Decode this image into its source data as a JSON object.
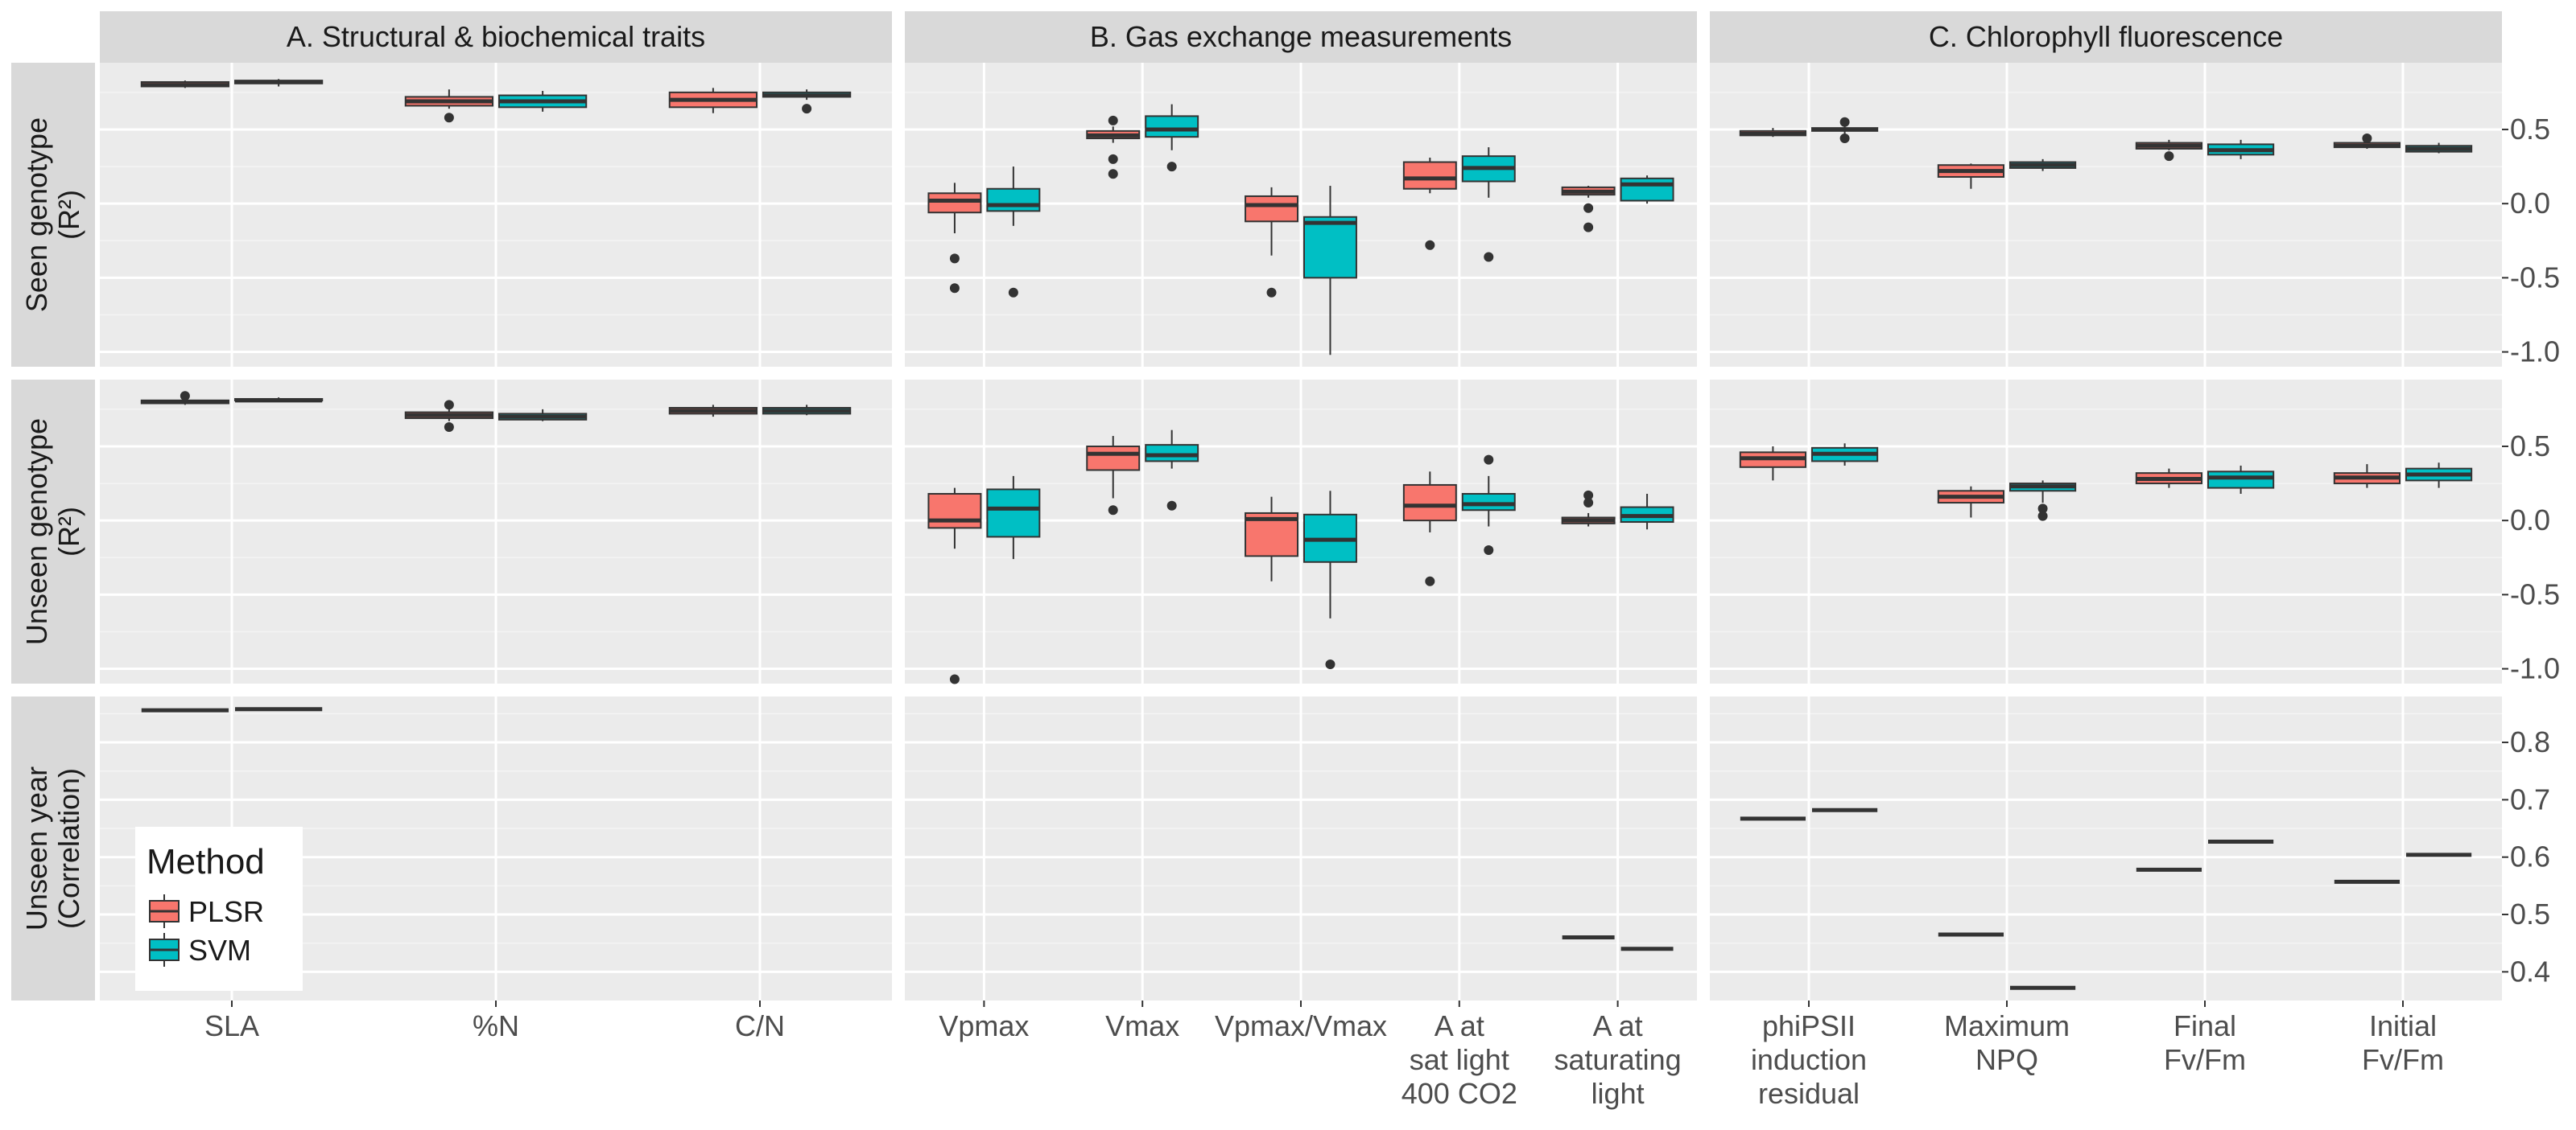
{
  "colors": {
    "panel_bg": "#ebebeb",
    "strip_bg": "#d9d9d9",
    "grid_major": "#ffffff",
    "grid_minor": "#f4f4f4",
    "plsr": "#f8766d",
    "svm": "#00bfc4",
    "outline": "#333333",
    "text": "#1a1a1a",
    "tick_text": "#4d4d4d"
  },
  "chart_data": {
    "type": "box",
    "columns": [
      {
        "id": "A",
        "title": "A. Structural & biochemical traits",
        "categories": [
          "SLA",
          "%N",
          "C/N"
        ]
      },
      {
        "id": "B",
        "title": "B. Gas exchange measurements",
        "categories": [
          "Vpmax",
          "Vmax",
          "Vpmax/Vmax",
          "A at\nsat light\n400 CO2",
          "A at\nsaturating\nlight"
        ]
      },
      {
        "id": "C",
        "title": "C. Chlorophyll fluorescence",
        "categories": [
          "phiPSII\ninduction\nresidual",
          "Maximum\nNPQ",
          "Final\nFv/Fm",
          "Initial\nFv/Fm"
        ]
      }
    ],
    "rows": [
      {
        "id": "seen",
        "label": "Seen genotype\n(R²)",
        "ylim": [
          -1.1,
          0.95
        ],
        "ticks": [
          0.5,
          0.0,
          -0.5,
          -1.0
        ],
        "tick_labels": [
          "0.5",
          "0.0",
          "-0.5",
          "-1.0"
        ]
      },
      {
        "id": "unseen_genotype",
        "label": "Unseen genotype\n(R²)",
        "ylim": [
          -1.1,
          0.95
        ],
        "ticks": [
          0.5,
          0.0,
          -0.5,
          -1.0
        ],
        "tick_labels": [
          "0.5",
          "0.0",
          "-0.5",
          "-1.0"
        ]
      },
      {
        "id": "unseen_year",
        "label": "Unseen year\n(Correlation)",
        "ylim": [
          0.35,
          0.88
        ],
        "ticks": [
          0.8,
          0.7,
          0.6,
          0.5,
          0.4
        ],
        "tick_labels": [
          "0.8",
          "0.7",
          "0.6",
          "0.5",
          "0.4"
        ]
      }
    ],
    "legend": {
      "title": "Method",
      "entries": [
        {
          "name": "PLSR",
          "color": "#f8766d"
        },
        {
          "name": "SVM",
          "color": "#00bfc4"
        }
      ],
      "position": "bottom-left"
    },
    "series": [
      {
        "name": "PLSR",
        "color": "#f8766d"
      },
      {
        "name": "SVM",
        "color": "#00bfc4"
      }
    ],
    "boxes": {
      "seen": {
        "A": [
          {
            "PLSR": {
              "min": 0.78,
              "q1": 0.79,
              "median": 0.8,
              "q3": 0.82,
              "max": 0.83,
              "out": []
            },
            "SVM": {
              "min": 0.79,
              "q1": 0.81,
              "median": 0.82,
              "q3": 0.83,
              "max": 0.84,
              "out": []
            }
          },
          {
            "PLSR": {
              "min": 0.64,
              "q1": 0.66,
              "median": 0.69,
              "q3": 0.72,
              "max": 0.77,
              "out": [
                0.58
              ]
            },
            "SVM": {
              "min": 0.62,
              "q1": 0.65,
              "median": 0.69,
              "q3": 0.73,
              "max": 0.76,
              "out": []
            }
          },
          {
            "PLSR": {
              "min": 0.61,
              "q1": 0.65,
              "median": 0.7,
              "q3": 0.75,
              "max": 0.78,
              "out": []
            },
            "SVM": {
              "min": 0.7,
              "q1": 0.72,
              "median": 0.73,
              "q3": 0.75,
              "max": 0.77,
              "out": [
                0.64
              ]
            }
          }
        ],
        "B": [
          {
            "PLSR": {
              "min": -0.2,
              "q1": -0.06,
              "median": 0.02,
              "q3": 0.07,
              "max": 0.14,
              "out": [
                -0.37,
                -0.57
              ]
            },
            "SVM": {
              "min": -0.15,
              "q1": -0.05,
              "median": -0.01,
              "q3": 0.1,
              "max": 0.25,
              "out": [
                -0.6
              ]
            }
          },
          {
            "PLSR": {
              "min": 0.41,
              "q1": 0.44,
              "median": 0.46,
              "q3": 0.49,
              "max": 0.52,
              "out": [
                0.56,
                0.3,
                0.2
              ]
            },
            "SVM": {
              "min": 0.36,
              "q1": 0.45,
              "median": 0.5,
              "q3": 0.59,
              "max": 0.67,
              "out": [
                0.25
              ]
            }
          },
          {
            "PLSR": {
              "min": -0.35,
              "q1": -0.12,
              "median": -0.01,
              "q3": 0.05,
              "max": 0.11,
              "out": [
                -0.6
              ]
            },
            "SVM": {
              "min": -1.02,
              "q1": -0.5,
              "median": -0.13,
              "q3": -0.09,
              "max": 0.12,
              "out": []
            }
          },
          {
            "PLSR": {
              "min": 0.07,
              "q1": 0.1,
              "median": 0.17,
              "q3": 0.28,
              "max": 0.31,
              "out": [
                -0.28
              ]
            },
            "SVM": {
              "min": 0.04,
              "q1": 0.15,
              "median": 0.24,
              "q3": 0.32,
              "max": 0.38,
              "out": [
                -0.36
              ]
            }
          },
          {
            "PLSR": {
              "min": 0.04,
              "q1": 0.06,
              "median": 0.08,
              "q3": 0.11,
              "max": 0.12,
              "out": [
                -0.03,
                -0.16
              ]
            },
            "SVM": {
              "min": 0.0,
              "q1": 0.02,
              "median": 0.13,
              "q3": 0.17,
              "max": 0.19,
              "out": []
            }
          }
        ],
        "C": [
          {
            "PLSR": {
              "min": 0.45,
              "q1": 0.46,
              "median": 0.47,
              "q3": 0.49,
              "max": 0.51,
              "out": []
            },
            "SVM": {
              "min": 0.47,
              "q1": 0.49,
              "median": 0.5,
              "q3": 0.51,
              "max": 0.52,
              "out": [
                0.55,
                0.44
              ]
            }
          },
          {
            "PLSR": {
              "min": 0.1,
              "q1": 0.18,
              "median": 0.22,
              "q3": 0.26,
              "max": 0.27,
              "out": []
            },
            "SVM": {
              "min": 0.22,
              "q1": 0.24,
              "median": 0.26,
              "q3": 0.28,
              "max": 0.3,
              "out": []
            }
          },
          {
            "PLSR": {
              "min": 0.36,
              "q1": 0.37,
              "median": 0.39,
              "q3": 0.41,
              "max": 0.43,
              "out": [
                0.32
              ]
            },
            "SVM": {
              "min": 0.3,
              "q1": 0.33,
              "median": 0.36,
              "q3": 0.4,
              "max": 0.43,
              "out": []
            }
          },
          {
            "PLSR": {
              "min": 0.37,
              "q1": 0.38,
              "median": 0.39,
              "q3": 0.41,
              "max": 0.42,
              "out": [
                0.44
              ]
            },
            "SVM": {
              "min": 0.34,
              "q1": 0.35,
              "median": 0.37,
              "q3": 0.39,
              "max": 0.41,
              "out": []
            }
          }
        ]
      },
      "unseen_genotype": {
        "A": [
          {
            "PLSR": {
              "min": 0.78,
              "q1": 0.79,
              "median": 0.8,
              "q3": 0.81,
              "max": 0.82,
              "out": [
                0.84
              ]
            },
            "SVM": {
              "min": 0.8,
              "q1": 0.81,
              "median": 0.81,
              "q3": 0.82,
              "max": 0.83,
              "out": []
            }
          },
          {
            "PLSR": {
              "min": 0.67,
              "q1": 0.69,
              "median": 0.71,
              "q3": 0.73,
              "max": 0.75,
              "out": [
                0.78,
                0.63
              ]
            },
            "SVM": {
              "min": 0.67,
              "q1": 0.68,
              "median": 0.7,
              "q3": 0.72,
              "max": 0.75,
              "out": []
            }
          },
          {
            "PLSR": {
              "min": 0.7,
              "q1": 0.72,
              "median": 0.74,
              "q3": 0.76,
              "max": 0.78,
              "out": []
            },
            "SVM": {
              "min": 0.71,
              "q1": 0.72,
              "median": 0.74,
              "q3": 0.76,
              "max": 0.78,
              "out": []
            }
          }
        ],
        "B": [
          {
            "PLSR": {
              "min": -0.19,
              "q1": -0.05,
              "median": 0.0,
              "q3": 0.18,
              "max": 0.22,
              "out": [
                -1.07
              ]
            },
            "SVM": {
              "min": -0.26,
              "q1": -0.11,
              "median": 0.08,
              "q3": 0.21,
              "max": 0.3,
              "out": []
            }
          },
          {
            "PLSR": {
              "min": 0.15,
              "q1": 0.34,
              "median": 0.45,
              "q3": 0.5,
              "max": 0.57,
              "out": [
                0.07
              ]
            },
            "SVM": {
              "min": 0.35,
              "q1": 0.4,
              "median": 0.44,
              "q3": 0.51,
              "max": 0.61,
              "out": [
                0.1
              ]
            }
          },
          {
            "PLSR": {
              "min": -0.41,
              "q1": -0.24,
              "median": 0.01,
              "q3": 0.05,
              "max": 0.16,
              "out": []
            },
            "SVM": {
              "min": -0.66,
              "q1": -0.28,
              "median": -0.13,
              "q3": 0.04,
              "max": 0.2,
              "out": [
                -0.97
              ]
            }
          },
          {
            "PLSR": {
              "min": -0.08,
              "q1": 0.0,
              "median": 0.1,
              "q3": 0.24,
              "max": 0.33,
              "out": [
                -0.41
              ]
            },
            "SVM": {
              "min": -0.04,
              "q1": 0.07,
              "median": 0.11,
              "q3": 0.18,
              "max": 0.3,
              "out": [
                0.41,
                -0.2
              ]
            }
          },
          {
            "PLSR": {
              "min": -0.04,
              "q1": -0.02,
              "median": 0.0,
              "q3": 0.02,
              "max": 0.05,
              "out": [
                0.17,
                0.12
              ]
            },
            "SVM": {
              "min": -0.06,
              "q1": -0.01,
              "median": 0.03,
              "q3": 0.09,
              "max": 0.18,
              "out": []
            }
          }
        ],
        "C": [
          {
            "PLSR": {
              "min": 0.27,
              "q1": 0.36,
              "median": 0.42,
              "q3": 0.46,
              "max": 0.5,
              "out": []
            },
            "SVM": {
              "min": 0.37,
              "q1": 0.4,
              "median": 0.45,
              "q3": 0.49,
              "max": 0.52,
              "out": []
            }
          },
          {
            "PLSR": {
              "min": 0.02,
              "q1": 0.12,
              "median": 0.16,
              "q3": 0.2,
              "max": 0.23,
              "out": []
            },
            "SVM": {
              "min": 0.12,
              "q1": 0.2,
              "median": 0.23,
              "q3": 0.25,
              "max": 0.27,
              "out": [
                0.08,
                0.03
              ]
            }
          },
          {
            "PLSR": {
              "min": 0.22,
              "q1": 0.25,
              "median": 0.28,
              "q3": 0.32,
              "max": 0.35,
              "out": []
            },
            "SVM": {
              "min": 0.18,
              "q1": 0.22,
              "median": 0.29,
              "q3": 0.33,
              "max": 0.37,
              "out": []
            }
          },
          {
            "PLSR": {
              "min": 0.22,
              "q1": 0.25,
              "median": 0.29,
              "q3": 0.32,
              "max": 0.38,
              "out": []
            },
            "SVM": {
              "min": 0.22,
              "q1": 0.27,
              "median": 0.31,
              "q3": 0.35,
              "max": 0.39,
              "out": []
            }
          }
        ]
      },
      "unseen_year": {
        "A": [
          {
            "PLSR": {
              "min": 0.856,
              "q1": 0.856,
              "median": 0.856,
              "q3": 0.856,
              "max": 0.856,
              "out": []
            },
            "SVM": {
              "min": 0.858,
              "q1": 0.858,
              "median": 0.858,
              "q3": 0.858,
              "max": 0.858,
              "out": []
            }
          },
          null,
          null
        ],
        "B": [
          null,
          null,
          null,
          null,
          {
            "PLSR": {
              "min": 0.46,
              "q1": 0.46,
              "median": 0.46,
              "q3": 0.46,
              "max": 0.46,
              "out": []
            },
            "SVM": {
              "min": 0.44,
              "q1": 0.44,
              "median": 0.44,
              "q3": 0.44,
              "max": 0.44,
              "out": []
            }
          }
        ],
        "C": [
          {
            "PLSR": {
              "min": 0.667,
              "q1": 0.667,
              "median": 0.667,
              "q3": 0.667,
              "max": 0.667,
              "out": []
            },
            "SVM": {
              "min": 0.682,
              "q1": 0.682,
              "median": 0.682,
              "q3": 0.682,
              "max": 0.682,
              "out": []
            }
          },
          {
            "PLSR": {
              "min": 0.465,
              "q1": 0.465,
              "median": 0.465,
              "q3": 0.465,
              "max": 0.465,
              "out": []
            },
            "SVM": {
              "min": 0.372,
              "q1": 0.372,
              "median": 0.372,
              "q3": 0.372,
              "max": 0.372,
              "out": []
            }
          },
          {
            "PLSR": {
              "min": 0.578,
              "q1": 0.578,
              "median": 0.578,
              "q3": 0.578,
              "max": 0.578,
              "out": []
            },
            "SVM": {
              "min": 0.627,
              "q1": 0.627,
              "median": 0.627,
              "q3": 0.627,
              "max": 0.627,
              "out": []
            }
          },
          {
            "PLSR": {
              "min": 0.557,
              "q1": 0.557,
              "median": 0.557,
              "q3": 0.557,
              "max": 0.557,
              "out": []
            },
            "SVM": {
              "min": 0.604,
              "q1": 0.604,
              "median": 0.604,
              "q3": 0.604,
              "max": 0.604,
              "out": []
            }
          }
        ]
      }
    }
  }
}
